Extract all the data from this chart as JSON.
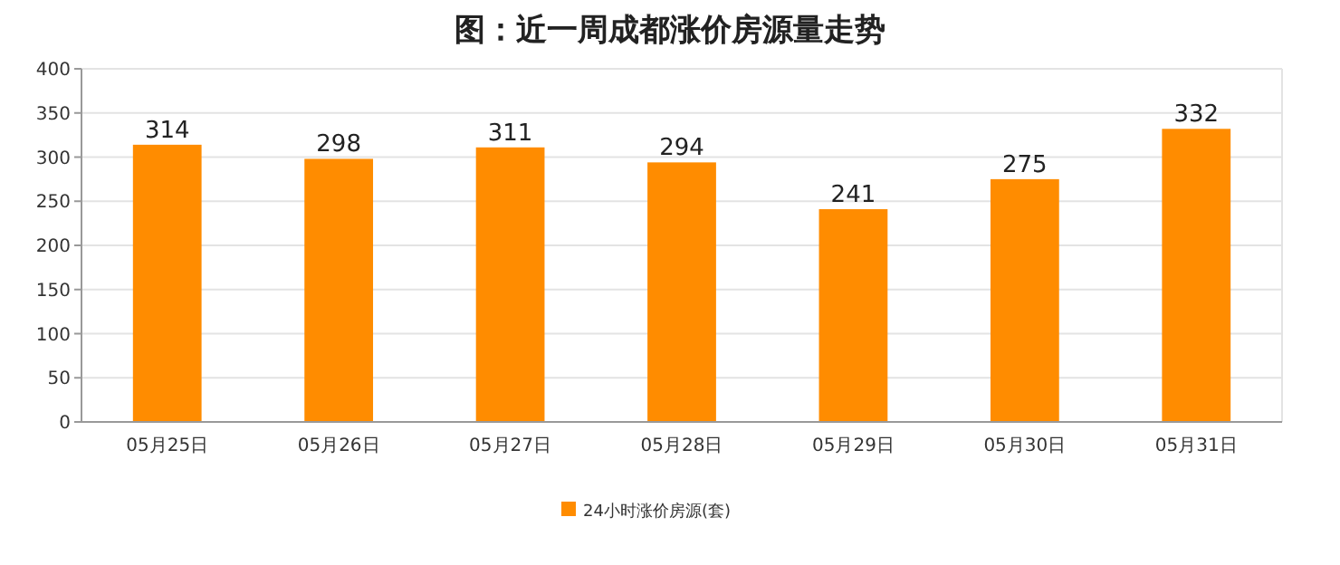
{
  "chart_data": {
    "type": "bar",
    "title": "图：近一周成都涨价房源量走势",
    "categories": [
      "05月25日",
      "05月26日",
      "05月27日",
      "05月28日",
      "05月29日",
      "05月30日",
      "05月31日"
    ],
    "series": [
      {
        "name": "24小时涨价房源(套)",
        "color": "#ff8c00",
        "values": [
          314,
          298,
          311,
          294,
          241,
          275,
          332
        ]
      }
    ],
    "ylim": [
      0,
      400
    ],
    "yticks": [
      0,
      50,
      100,
      150,
      200,
      250,
      300,
      350,
      400
    ],
    "grid": "y",
    "legend": "bottom",
    "data_labels": true
  }
}
